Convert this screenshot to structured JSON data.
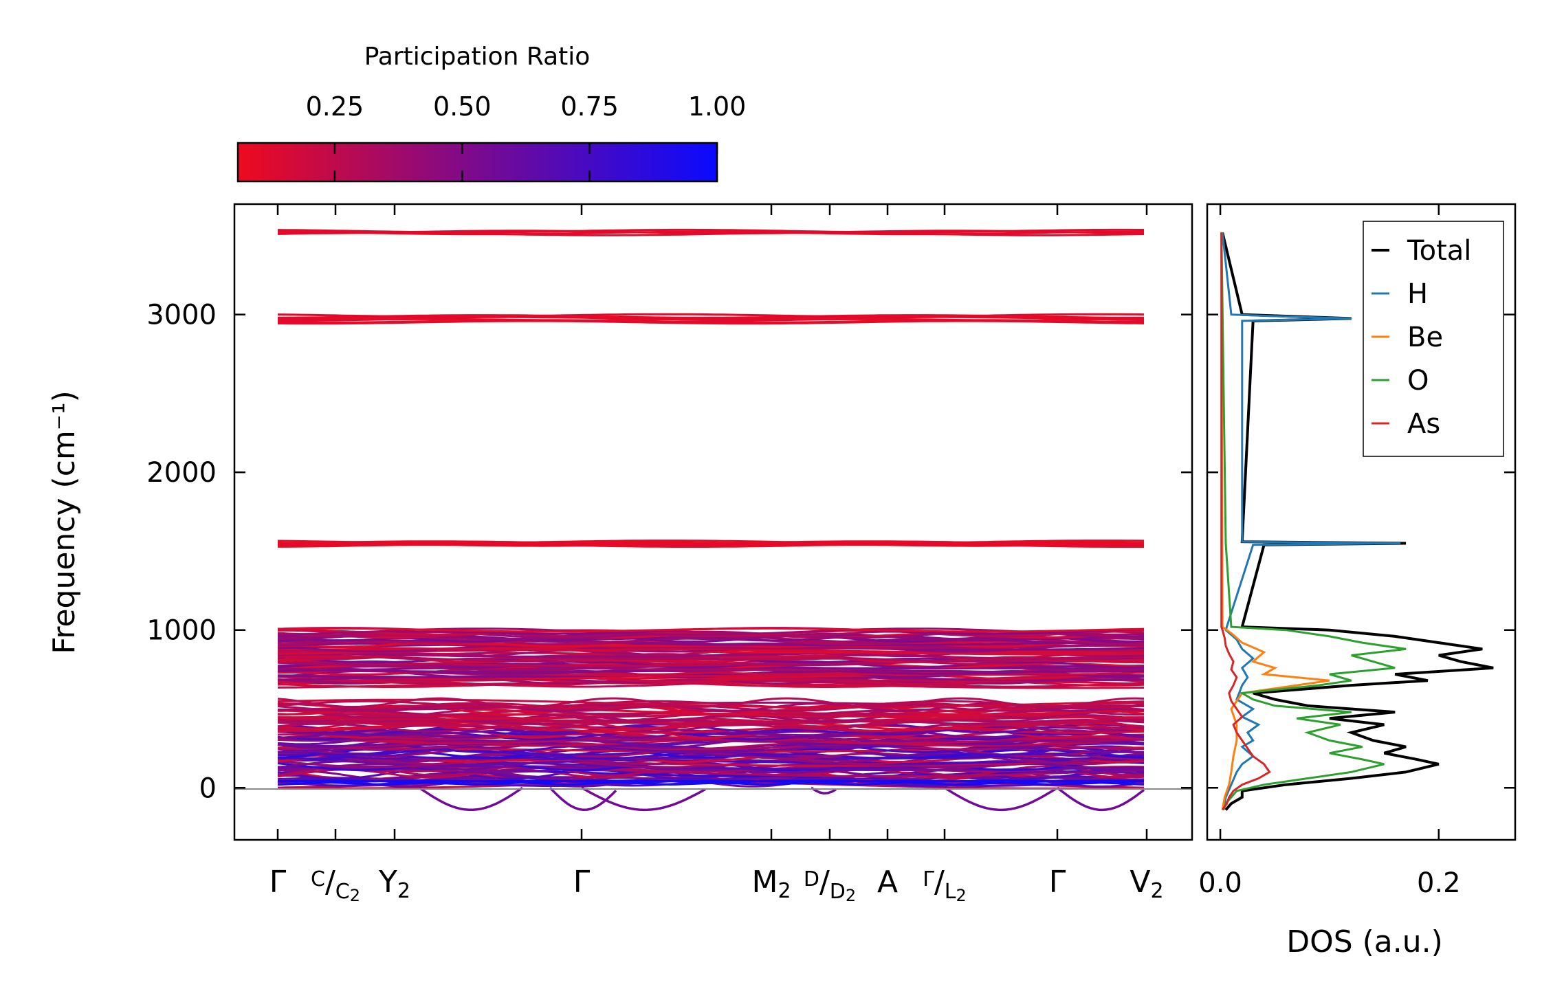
{
  "chart_data": [
    {
      "type": "line",
      "subtype": "phonon_band_structure",
      "ylabel": "Frequency (cm⁻¹)",
      "ylim": [
        -330,
        3700
      ],
      "yticks": [
        "0",
        "1000",
        "2000",
        "3000"
      ],
      "ytick_values": [
        0,
        1000,
        2000,
        3000
      ],
      "path_labels": [
        "Γ",
        "C/C₂",
        "Y₂",
        "Γ",
        "M₂",
        "D/D₂",
        "A",
        "Γ/L₂",
        "Γ",
        "V₂"
      ],
      "colorbar": {
        "title": "Participation Ratio",
        "tick_labels": [
          "0.25",
          "0.50",
          "0.75",
          "1.00"
        ],
        "tick_values": [
          0.25,
          0.5,
          0.75,
          1.0
        ],
        "range": [
          0.06,
          1.0
        ],
        "colormap": [
          "#ee0a1f",
          "#0a0aff"
        ]
      },
      "bands": {
        "flat_high": [
          3520,
          2985,
          2960,
          1550,
          1545
        ],
        "mid_block_range": [
          650,
          1000
        ],
        "low_block_range": [
          20,
          540
        ],
        "lowest_curves_min": -140
      }
    },
    {
      "type": "line",
      "subtype": "density_of_states",
      "xlabel": "DOS (a.u.)",
      "xlim": [
        -0.012,
        0.27
      ],
      "ylim": [
        -330,
        3700
      ],
      "xticks": [
        "0.0",
        "0.2"
      ],
      "xtick_values": [
        0,
        0.2
      ],
      "legend_position": "top-right",
      "series": [
        {
          "name": "Total",
          "color": "#000000",
          "y": [
            -140,
            -100,
            -60,
            -20,
            20,
            60,
            100,
            150,
            180,
            220,
            260,
            300,
            350,
            400,
            440,
            480,
            520,
            560,
            600,
            650,
            680,
            720,
            760,
            800,
            840,
            880,
            920,
            960,
            1000,
            1020,
            1540,
            1550,
            1560,
            2960,
            2975,
            2990,
            3000,
            3520
          ],
          "x": [
            0.005,
            0.01,
            0.02,
            0.02,
            0.06,
            0.12,
            0.17,
            0.2,
            0.18,
            0.15,
            0.17,
            0.14,
            0.12,
            0.15,
            0.1,
            0.16,
            0.08,
            0.05,
            0.03,
            0.12,
            0.19,
            0.16,
            0.25,
            0.22,
            0.2,
            0.24,
            0.2,
            0.16,
            0.1,
            0.02,
            0.04,
            0.17,
            0.02,
            0.03,
            0.12,
            0.06,
            0.02,
            0.002
          ]
        },
        {
          "name": "H",
          "color": "#1f77b4",
          "y": [
            -140,
            -60,
            20,
            100,
            150,
            200,
            260,
            300,
            350,
            400,
            450,
            500,
            560,
            650,
            700,
            760,
            820,
            880,
            940,
            1000,
            1540,
            1550,
            1560,
            2960,
            2975,
            2990,
            3000,
            3520
          ],
          "x": [
            0.003,
            0.005,
            0.01,
            0.015,
            0.02,
            0.03,
            0.02,
            0.03,
            0.025,
            0.035,
            0.02,
            0.03,
            0.015,
            0.02,
            0.025,
            0.02,
            0.03,
            0.02,
            0.015,
            0.005,
            0.03,
            0.165,
            0.02,
            0.02,
            0.12,
            0.05,
            0.01,
            0.002
          ]
        },
        {
          "name": "Be",
          "color": "#ff7f0e",
          "y": [
            -140,
            -60,
            20,
            100,
            200,
            300,
            400,
            500,
            600,
            650,
            680,
            720,
            760,
            800,
            860,
            920,
            980,
            1020,
            3520
          ],
          "x": [
            0.002,
            0.004,
            0.008,
            0.01,
            0.012,
            0.015,
            0.015,
            0.01,
            0.02,
            0.07,
            0.1,
            0.04,
            0.05,
            0.03,
            0.04,
            0.02,
            0.01,
            0.002,
            0.001
          ]
        },
        {
          "name": "O",
          "color": "#2ca02c",
          "y": [
            -140,
            -100,
            -60,
            -20,
            20,
            60,
            100,
            150,
            180,
            220,
            260,
            300,
            350,
            400,
            440,
            480,
            520,
            560,
            600,
            650,
            680,
            720,
            760,
            800,
            840,
            880,
            920,
            960,
            1000,
            1020,
            1550,
            3520
          ],
          "x": [
            0.003,
            0.005,
            0.01,
            0.015,
            0.04,
            0.08,
            0.12,
            0.15,
            0.13,
            0.1,
            0.13,
            0.1,
            0.08,
            0.11,
            0.07,
            0.12,
            0.05,
            0.03,
            0.02,
            0.09,
            0.12,
            0.1,
            0.16,
            0.14,
            0.12,
            0.17,
            0.13,
            0.1,
            0.06,
            0.01,
            0.005,
            0.001
          ]
        },
        {
          "name": "As",
          "color": "#d62728",
          "y": [
            -140,
            -100,
            -60,
            -20,
            20,
            60,
            100,
            150,
            200,
            250,
            300,
            350,
            400,
            450,
            500,
            550,
            600,
            650,
            700,
            750,
            800,
            850,
            900,
            950,
            1000,
            1020,
            3520
          ],
          "x": [
            0.002,
            0.006,
            0.008,
            0.012,
            0.02,
            0.035,
            0.045,
            0.04,
            0.03,
            0.025,
            0.02,
            0.015,
            0.012,
            0.02,
            0.015,
            0.01,
            0.008,
            0.012,
            0.015,
            0.01,
            0.012,
            0.008,
            0.005,
            0.004,
            0.002,
            0.001,
            0.001
          ]
        }
      ]
    }
  ]
}
